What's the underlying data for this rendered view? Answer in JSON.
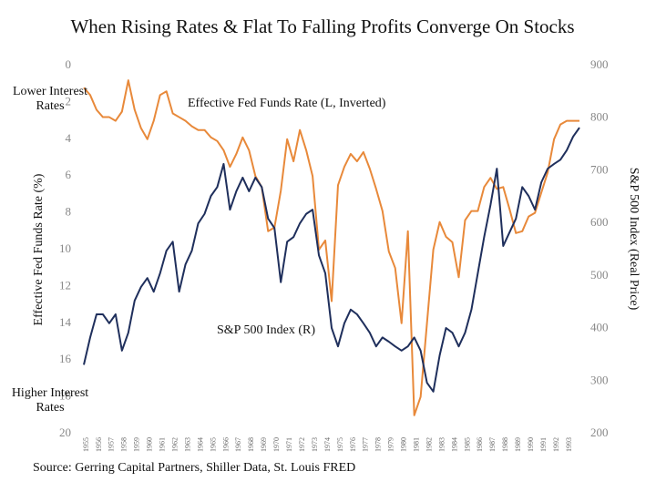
{
  "chart_data": {
    "type": "line",
    "title": "When Rising Rates & Flat To Falling Profits Converge On Stocks",
    "source": "Source: Gerring Capital Partners, Shiller Data, St. Louis FRED",
    "y_label": "Effective Fed Funds Rate (%)",
    "y2_label": "S&P 500 Index (Real Price)",
    "annotations": [
      "Lower Interest Rates",
      "Higher Interest Rates"
    ],
    "xlim": [
      1955,
      1994
    ],
    "xticks": [
      1955,
      1956,
      1957,
      1958,
      1959,
      1960,
      1961,
      1962,
      1963,
      1964,
      1965,
      1966,
      1967,
      1968,
      1969,
      1970,
      1971,
      1972,
      1973,
      1974,
      1975,
      1976,
      1977,
      1978,
      1979,
      1980,
      1981,
      1982,
      1983,
      1984,
      1985,
      1986,
      1987,
      1988,
      1989,
      1990,
      1991,
      1992,
      1993
    ],
    "ylim": [
      20,
      0
    ],
    "yticks": [
      0,
      2,
      4,
      6,
      8,
      10,
      12,
      14,
      16,
      18,
      20
    ],
    "y2lim": [
      200,
      900
    ],
    "y2ticks": [
      200,
      300,
      400,
      500,
      600,
      700,
      800,
      900
    ],
    "x": [
      1955,
      1955.5,
      1956,
      1956.5,
      1957,
      1957.5,
      1958,
      1958.5,
      1959,
      1959.5,
      1960,
      1960.5,
      1961,
      1961.5,
      1962,
      1962.5,
      1963,
      1963.5,
      1964,
      1964.5,
      1965,
      1965.5,
      1966,
      1966.5,
      1967,
      1967.5,
      1968,
      1968.5,
      1969,
      1969.5,
      1970,
      1970.5,
      1971,
      1971.5,
      1972,
      1972.5,
      1973,
      1973.5,
      1974,
      1974.5,
      1975,
      1975.5,
      1976,
      1976.5,
      1977,
      1977.5,
      1978,
      1978.5,
      1979,
      1979.5,
      1980,
      1980.5,
      1981,
      1981.5,
      1982,
      1982.5,
      1983,
      1983.5,
      1984,
      1984.5,
      1985,
      1985.5,
      1986,
      1986.5,
      1987,
      1987.5,
      1988,
      1988.5,
      1989,
      1989.5,
      1990,
      1990.5,
      1991,
      1991.5,
      1992,
      1992.5,
      1993,
      1993.5,
      1994
    ],
    "series": [
      {
        "name": "Effective Fed Funds Rate (L, Inverted)",
        "color": "#e8893a",
        "axis": "y",
        "values": [
          1.2,
          1.6,
          2.4,
          2.8,
          2.8,
          3.0,
          2.5,
          0.8,
          2.4,
          3.4,
          4.0,
          3.0,
          1.6,
          1.4,
          2.6,
          2.8,
          3.0,
          3.3,
          3.5,
          3.5,
          3.9,
          4.1,
          4.6,
          5.5,
          4.8,
          3.9,
          4.6,
          6.0,
          6.6,
          9.0,
          8.8,
          6.8,
          4.0,
          5.2,
          3.5,
          4.6,
          6.0,
          10.0,
          9.5,
          12.8,
          6.5,
          5.5,
          4.8,
          5.2,
          4.7,
          5.6,
          6.7,
          7.9,
          10.1,
          11.0,
          14.0,
          9.0,
          19.0,
          18.0,
          14.0,
          10.0,
          8.5,
          9.3,
          9.6,
          11.5,
          8.4,
          7.9,
          7.9,
          6.6,
          6.1,
          6.7,
          6.6,
          7.8,
          9.1,
          9.0,
          8.2,
          8.0,
          6.9,
          5.8,
          4.0,
          3.2,
          3.0,
          3.0,
          3.0
        ]
      },
      {
        "name": "S&P 500 Index (R)",
        "color": "#1f2f5c",
        "axis": "y2",
        "values": [
          331,
          383,
          427,
          427,
          410,
          427,
          358,
          392,
          453,
          479,
          496,
          470,
          505,
          548,
          565,
          470,
          522,
          548,
          600,
          618,
          652,
          669,
          713,
          626,
          661,
          687,
          661,
          687,
          669,
          609,
          591,
          488,
          565,
          574,
          600,
          618,
          626,
          539,
          505,
          401,
          366,
          410,
          436,
          427,
          410,
          392,
          366,
          383,
          375,
          366,
          358,
          366,
          383,
          358,
          297,
          280,
          349,
          401,
          392,
          366,
          392,
          436,
          505,
          574,
          635,
          704,
          557,
          583,
          609,
          669,
          652,
          626,
          678,
          704,
          713,
          721,
          739,
          765,
          782
        ]
      }
    ]
  }
}
